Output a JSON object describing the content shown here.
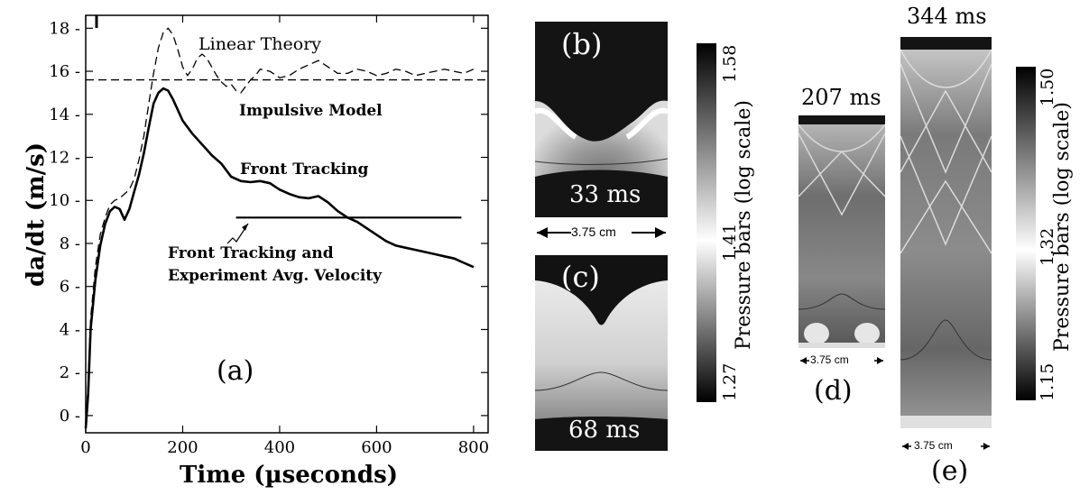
{
  "chart_data": {
    "type": "line",
    "title": "",
    "xlabel": "Time (µseconds)",
    "ylabel": "da/dt (m/s)",
    "xlim": [
      0,
      830
    ],
    "ylim": [
      -0.8,
      18.6
    ],
    "xticks": [
      0,
      200,
      400,
      600,
      800
    ],
    "yticks": [
      0,
      2,
      4,
      6,
      8,
      10,
      12,
      14,
      16,
      18
    ],
    "panel_label": "(a)",
    "series": [
      {
        "name": "Linear Theory",
        "style": "dashed",
        "x": [
          0,
          5,
          10,
          20,
          30,
          40,
          50,
          60,
          70,
          80,
          90,
          100,
          110,
          120,
          130,
          140,
          150,
          160,
          170,
          180,
          190,
          200,
          210,
          220,
          230,
          240,
          250,
          260,
          270,
          280,
          290,
          300,
          310,
          320,
          330,
          340,
          350,
          360,
          380,
          400,
          420,
          440,
          460,
          480,
          500,
          520,
          540,
          560,
          580,
          600,
          620,
          640,
          660,
          680,
          700,
          720,
          740,
          760,
          780,
          800
        ],
        "y": [
          -0.6,
          1.5,
          4.5,
          6.9,
          8.4,
          9.2,
          9.8,
          10.0,
          10.1,
          10.3,
          10.5,
          11.0,
          11.9,
          13.0,
          14.5,
          15.9,
          17.1,
          17.8,
          18.0,
          17.7,
          17.0,
          16.2,
          15.8,
          16.1,
          16.6,
          16.8,
          16.6,
          16.2,
          15.8,
          15.5,
          15.3,
          15.4,
          15.1,
          15.0,
          15.3,
          15.6,
          15.8,
          16.1,
          16.0,
          15.7,
          15.8,
          16.1,
          16.3,
          16.5,
          16.2,
          15.9,
          15.9,
          16.1,
          16.0,
          15.8,
          15.9,
          16.1,
          16.0,
          15.8,
          15.9,
          16.0,
          16.1,
          16.0,
          15.9,
          16.1
        ]
      },
      {
        "name": "Impulsive Model",
        "style": "dashed",
        "x": [
          0,
          830
        ],
        "y": [
          15.6,
          15.6
        ]
      },
      {
        "name": "Front Tracking",
        "style": "solid",
        "x": [
          0,
          5,
          10,
          20,
          30,
          40,
          50,
          60,
          70,
          80,
          90,
          100,
          110,
          120,
          130,
          140,
          150,
          160,
          170,
          180,
          190,
          200,
          220,
          240,
          260,
          280,
          300,
          320,
          340,
          360,
          380,
          400,
          420,
          440,
          460,
          480,
          500,
          520,
          540,
          560,
          580,
          600,
          620,
          640,
          660,
          680,
          700,
          720,
          740,
          760,
          780,
          800
        ],
        "y": [
          -0.6,
          1.0,
          4.0,
          6.3,
          7.9,
          8.9,
          9.5,
          9.7,
          9.6,
          9.1,
          9.6,
          10.4,
          11.2,
          12.2,
          13.4,
          14.5,
          15.0,
          15.2,
          15.1,
          14.7,
          14.2,
          13.7,
          13.1,
          12.6,
          12.1,
          11.7,
          11.1,
          10.9,
          10.85,
          10.9,
          10.8,
          10.5,
          10.3,
          10.15,
          10.1,
          10.2,
          9.9,
          9.5,
          9.2,
          9.0,
          8.7,
          8.4,
          8.1,
          7.9,
          7.8,
          7.7,
          7.6,
          7.5,
          7.4,
          7.3,
          7.1,
          6.9
        ]
      },
      {
        "name": "Front Tracking and Experiment Avg. Velocity",
        "style": "solid",
        "x": [
          310,
          775
        ],
        "y": [
          9.2,
          9.2
        ]
      }
    ],
    "annotations": [
      "Linear Theory",
      "Impulsive Model",
      "Front Tracking",
      "Front Tracking and",
      "Experiment Avg. Velocity"
    ]
  },
  "panels": {
    "b": {
      "label": "(b)",
      "time": "33 ms",
      "scale": "3.75 cm"
    },
    "c": {
      "label": "(c)",
      "time": "68 ms"
    },
    "colorbar1": {
      "title": "Pressure bars (log scale)",
      "max": "1.58",
      "mid": "1.41",
      "min": "1.27"
    },
    "d": {
      "label": "(d)",
      "time": "207 ms",
      "scale": "3.75 cm"
    },
    "e": {
      "label": "(e)",
      "time": "344 ms",
      "scale": "3.75 cm"
    },
    "colorbar2": {
      "title": "Pressure bars (log scale)",
      "max": "1.50",
      "mid": "1.32",
      "min": "1.15"
    }
  }
}
